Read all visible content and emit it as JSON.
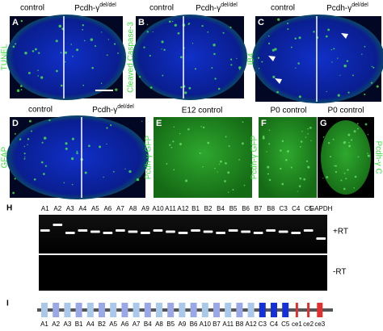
{
  "panels": [
    {
      "letter": "A",
      "left_title": "control",
      "right_title": "Pcdh-γ",
      "right_title_sup": "del/del",
      "side": "TUNEL"
    },
    {
      "letter": "B",
      "left_title": "control",
      "right_title": "Pcdh-γ",
      "right_title_sup": "del/del",
      "side": "Cleaved Caspase-3"
    },
    {
      "letter": "C",
      "left_title": "control",
      "right_title": "Pcdh-γ",
      "right_title_sup": "del/del",
      "side": "IB4"
    },
    {
      "letter": "D",
      "left_title": "control",
      "right_title": "Pcdh-γ",
      "right_title_sup": "del/del",
      "side": "GFAP"
    },
    {
      "letter": "E",
      "title": "E12  control",
      "side": "Pcdh-γ GFP"
    },
    {
      "letter": "F",
      "title": "P0  control",
      "side": "Pcdh-γ GFP"
    },
    {
      "letter": "G",
      "title": "P0  control",
      "side": "Pcdh-γ C"
    }
  ],
  "gel": {
    "letter": "H",
    "lanes": [
      "A1",
      "A2",
      "A3",
      "A4",
      "A5",
      "A6",
      "A7",
      "A8",
      "A9",
      "A10",
      "A11",
      "A12",
      "B1",
      "B2",
      "B4",
      "B5",
      "B6",
      "B7",
      "B8",
      "C3",
      "C4",
      "C5",
      "GAPDH"
    ],
    "plus_label": "+RT",
    "minus_label": "-RT"
  },
  "gene": {
    "letter": "I",
    "exons": [
      "A1",
      "A2",
      "A3",
      "B1",
      "A4",
      "B2",
      "A5",
      "A6",
      "A7",
      "B4",
      "A8",
      "B5",
      "A9",
      "B6",
      "A10",
      "B7",
      "A11",
      "B8",
      "A12",
      "C3",
      "C4",
      "C5",
      "ce1",
      "ce2",
      "ce3"
    ]
  }
}
